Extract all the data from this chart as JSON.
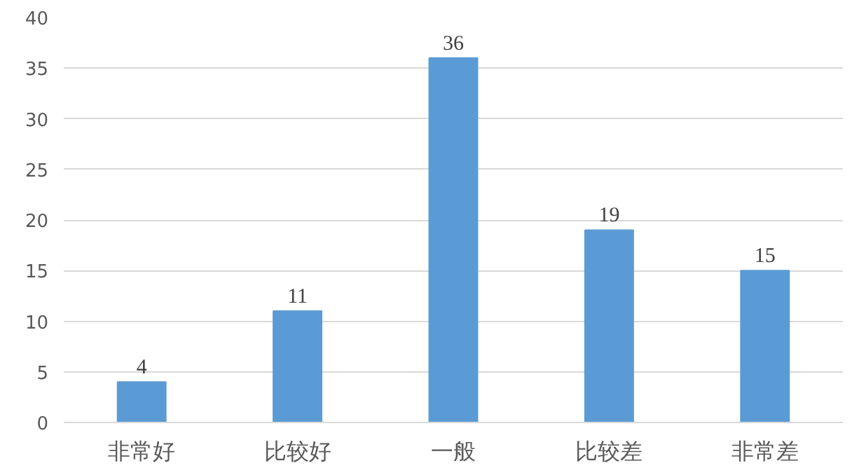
{
  "chart_data": {
    "type": "bar",
    "categories": [
      "非常好",
      "比较好",
      "一般",
      "比较差",
      "非常差"
    ],
    "values": [
      4,
      11,
      36,
      19,
      15
    ],
    "color": "#5b9bd5",
    "ylim": [
      0,
      40
    ],
    "yticks": [
      0,
      5,
      10,
      15,
      20,
      25,
      30,
      35,
      40
    ],
    "grid": "y",
    "data_labels": true
  }
}
